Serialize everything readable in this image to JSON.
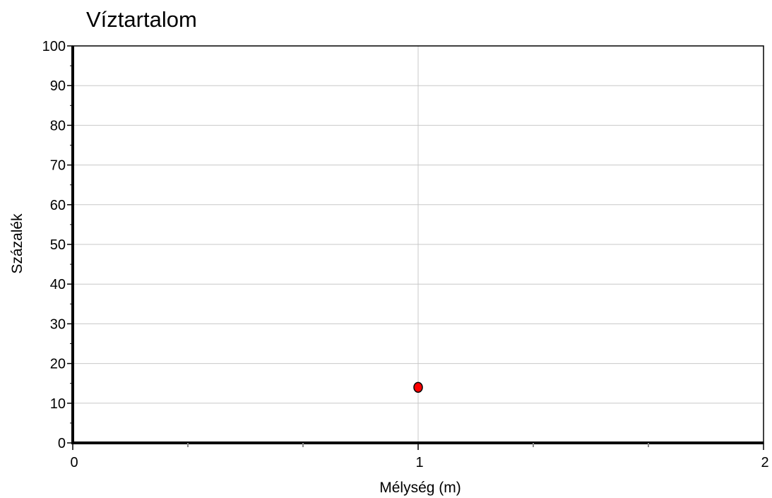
{
  "chart_data": {
    "type": "scatter",
    "title": "Víztartalom",
    "xlabel": "Mélység (m)",
    "ylabel": "Százalék",
    "xlim": [
      0,
      2
    ],
    "ylim": [
      0,
      100
    ],
    "x_ticks": [
      0,
      1,
      2
    ],
    "y_ticks": [
      0,
      10,
      20,
      30,
      40,
      50,
      60,
      70,
      80,
      90,
      100
    ],
    "grid": true,
    "legend": "none",
    "series": [
      {
        "points": [
          {
            "x": 1,
            "y": 14
          }
        ],
        "color": "#ff0000"
      }
    ]
  },
  "colors": {
    "grid": "#c8c8c8",
    "axis": "#000000",
    "marker_fill": "#ff0000",
    "marker_stroke": "#000000"
  }
}
